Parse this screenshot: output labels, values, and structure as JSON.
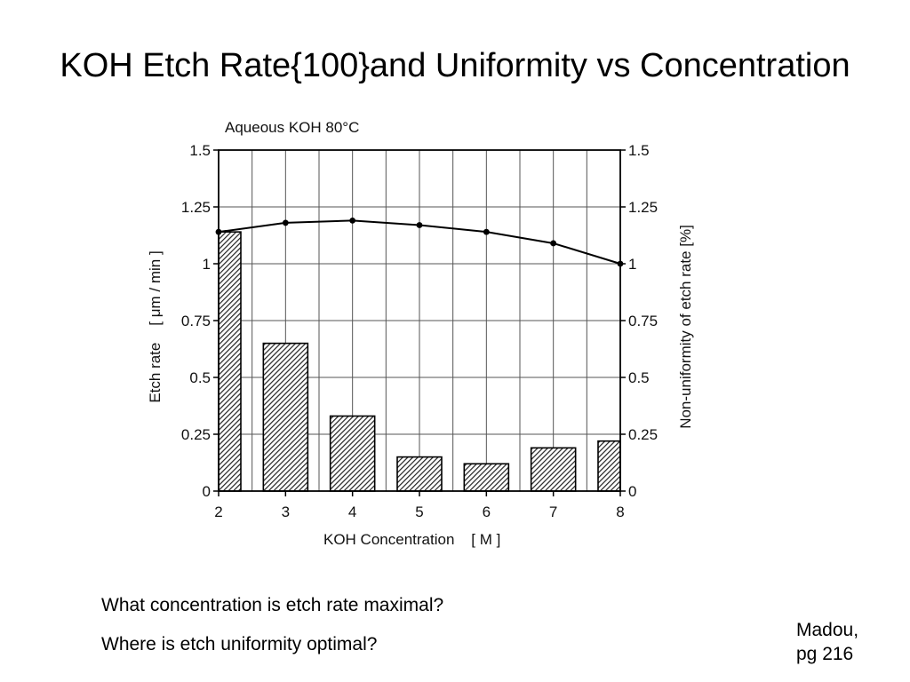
{
  "slide": {
    "title": "KOH Etch Rate{100}and Uniformity vs Concentration",
    "questions": [
      "What concentration is etch rate maximal?",
      "Where is etch uniformity optimal?"
    ],
    "citation_line1": "Madou,",
    "citation_line2": "pg 216"
  },
  "chart_data": {
    "type": "bar",
    "title": "Aqueous KOH 80°C",
    "xlabel": "KOH Concentration    [ M ]",
    "ylabel_left": "Etch rate    [ μm / min ]",
    "ylabel_right": "Non-uniformity of etch rate [%]",
    "x_ticks": [
      "2",
      "3",
      "4",
      "5",
      "6",
      "7",
      "8"
    ],
    "y_ticks_left": [
      "0",
      "0.25",
      "0.5",
      "0.75",
      "1",
      "1.25",
      "1.5"
    ],
    "y_ticks_right": [
      "0",
      "0.25",
      "0.5",
      "0.75",
      "1",
      "1.25",
      "1.5"
    ],
    "xlim": [
      2,
      8
    ],
    "ylim_left": [
      0,
      1.5
    ],
    "ylim_right": [
      0,
      1.5
    ],
    "grid": true,
    "bar_fill": "#444444",
    "bars": {
      "name": "Etch rate",
      "x": [
        2,
        3,
        4,
        5,
        6,
        7,
        8
      ],
      "values": [
        1.14,
        0.65,
        0.33,
        0.15,
        0.12,
        0.19,
        0.22
      ]
    },
    "line": {
      "name": "Non-uniformity",
      "x": [
        2,
        3,
        4,
        5,
        6,
        7,
        8
      ],
      "values": [
        1.14,
        1.18,
        1.19,
        1.17,
        1.14,
        1.09,
        1.0
      ]
    }
  }
}
